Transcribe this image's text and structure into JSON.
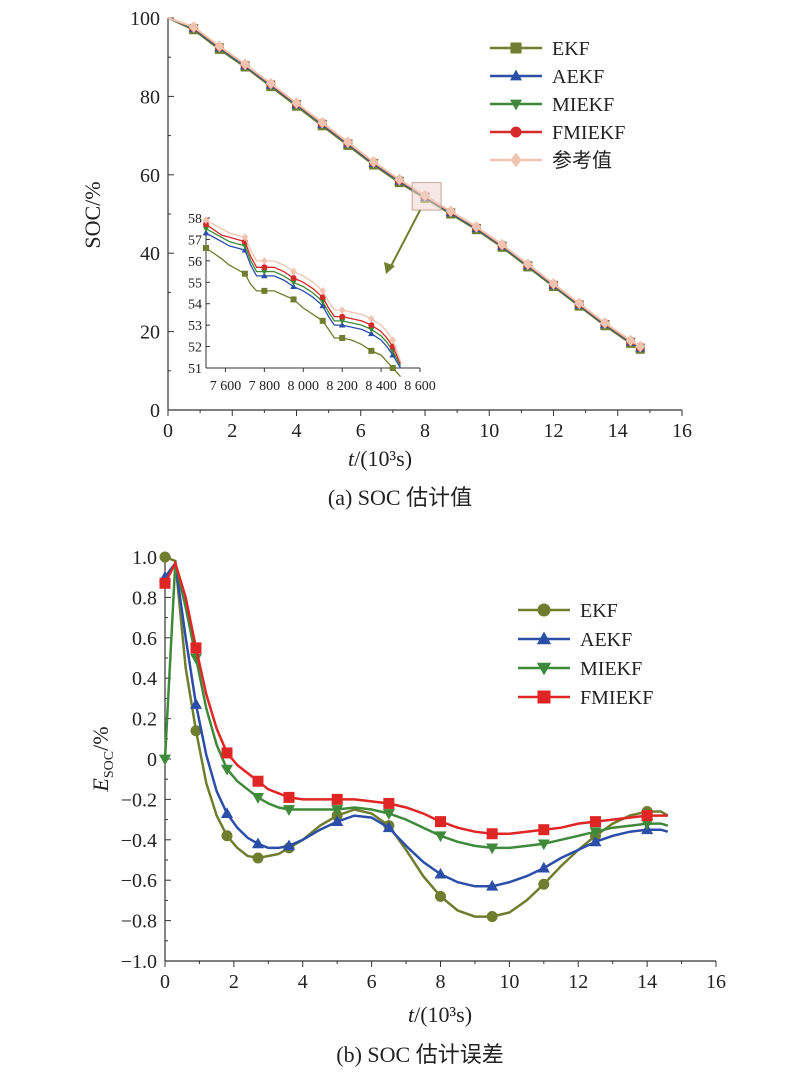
{
  "chart_data": [
    {
      "type": "line",
      "caption": "(a) SOC 估计值",
      "xlabel_italic": "t",
      "xlabel_rest": "/(10³s)",
      "ylabel": "SOC/%",
      "xlim": [
        0,
        16
      ],
      "ylim": [
        0,
        100
      ],
      "xticks": [
        0,
        2,
        4,
        6,
        8,
        10,
        12,
        14,
        16
      ],
      "yticks": [
        0,
        20,
        40,
        60,
        80,
        100
      ],
      "legend_position": "top-right",
      "series": [
        {
          "name": "EKF",
          "color": "#6e7d2e",
          "marker": "square",
          "x": [
            0,
            0.8,
            1.6,
            2.4,
            3.2,
            4.0,
            4.8,
            5.6,
            6.4,
            7.2,
            8.0,
            8.8,
            9.6,
            10.4,
            11.2,
            12.0,
            12.8,
            13.6,
            14.4,
            14.7
          ],
          "y": [
            100,
            97,
            92,
            87.5,
            82.5,
            77.5,
            72.5,
            67.5,
            62.5,
            58,
            54,
            50,
            46,
            41.5,
            36.5,
            31.5,
            26.5,
            21.5,
            17,
            15.5
          ]
        },
        {
          "name": "AEKF",
          "color": "#2b4fa8",
          "marker": "triangle-up",
          "x": [
            0,
            0.8,
            1.6,
            2.4,
            3.2,
            4.0,
            4.8,
            5.6,
            6.4,
            7.2,
            8.0,
            8.8,
            9.6,
            10.4,
            11.2,
            12.0,
            12.8,
            13.6,
            14.4,
            14.7
          ],
          "y": [
            100,
            97.3,
            92.4,
            87.8,
            82.9,
            77.9,
            72.9,
            67.9,
            62.9,
            58.4,
            54.3,
            50.3,
            46.3,
            41.8,
            36.8,
            31.8,
            26.8,
            21.8,
            17.3,
            15.8
          ]
        },
        {
          "name": "MIEKF",
          "color": "#3e8a3a",
          "marker": "triangle-down",
          "x": [
            0,
            0.8,
            1.6,
            2.4,
            3.2,
            4.0,
            4.8,
            5.6,
            6.4,
            7.2,
            8.0,
            8.8,
            9.6,
            10.4,
            11.2,
            12.0,
            12.8,
            13.6,
            14.4,
            14.7
          ],
          "y": [
            100,
            97.5,
            92.6,
            88,
            83.1,
            78.1,
            73.1,
            68.1,
            63.1,
            58.6,
            54.5,
            50.5,
            46.5,
            42,
            37,
            32,
            27,
            22,
            17.5,
            16
          ]
        },
        {
          "name": "FMIEKF",
          "color": "#d42a2a",
          "marker": "circle",
          "x": [
            0,
            0.8,
            1.6,
            2.4,
            3.2,
            4.0,
            4.8,
            5.6,
            6.4,
            7.2,
            8.0,
            8.8,
            9.6,
            10.4,
            11.2,
            12.0,
            12.8,
            13.6,
            14.4,
            14.7
          ],
          "y": [
            100,
            97.6,
            92.7,
            88.1,
            83.2,
            78.2,
            73.2,
            68.2,
            63.2,
            58.7,
            54.6,
            50.6,
            46.6,
            42.1,
            37.1,
            32.1,
            27.1,
            22.1,
            17.6,
            16.1
          ]
        },
        {
          "name": "参考值",
          "color": "#f0c4b0",
          "marker": "diamond",
          "x": [
            0,
            0.8,
            1.6,
            2.4,
            3.2,
            4.0,
            4.8,
            5.6,
            6.4,
            7.2,
            8.0,
            8.8,
            9.6,
            10.4,
            11.2,
            12.0,
            12.8,
            13.6,
            14.4,
            14.7
          ],
          "y": [
            100,
            97.7,
            92.8,
            88.2,
            83.3,
            78.3,
            73.3,
            68.3,
            63.3,
            58.8,
            54.7,
            50.7,
            46.7,
            42.2,
            37.2,
            32.2,
            27.2,
            22.2,
            17.7,
            16.2
          ]
        }
      ],
      "zoom_region": {
        "x": [
          7.6,
          8.5
        ],
        "y": [
          51,
          58
        ]
      },
      "inset": {
        "xlim": [
          7500,
          8600
        ],
        "ylim": [
          51,
          58
        ],
        "xtick_labels": [
          "7 600",
          "7 800",
          "8 000",
          "8 200",
          "8 400",
          "8 600"
        ],
        "xtick_values": [
          7600,
          7800,
          8000,
          8200,
          8400,
          8600
        ],
        "yticks": [
          51,
          52,
          53,
          54,
          55,
          56,
          57,
          58
        ],
        "series": [
          {
            "name": "EKF",
            "color": "#6e7d2e",
            "marker": "square",
            "x": [
              7500,
              7580,
              7620,
              7700,
              7730,
              7760,
              7800,
              7850,
              7900,
              7950,
              8000,
              8050,
              8100,
              8130,
              8160,
              8200,
              8250,
              8300,
              8350,
              8400,
              8430,
              8460,
              8500
            ],
            "y": [
              56.6,
              56.1,
              55.8,
              55.4,
              54.9,
              54.6,
              54.6,
              54.6,
              54.4,
              54.2,
              53.8,
              53.5,
              53.2,
              52.8,
              52.4,
              52.4,
              52.3,
              52.1,
              51.8,
              51.6,
              51.3,
              51.0,
              50.6
            ]
          },
          {
            "name": "AEKF",
            "color": "#2b4fa8",
            "marker": "triangle-up",
            "x": [
              7500,
              7580,
              7620,
              7700,
              7730,
              7760,
              7800,
              7850,
              7900,
              7950,
              8000,
              8050,
              8100,
              8130,
              8160,
              8200,
              8250,
              8300,
              8350,
              8400,
              8430,
              8460,
              8500
            ],
            "y": [
              57.3,
              56.9,
              56.7,
              56.5,
              55.8,
              55.3,
              55.3,
              55.3,
              55.1,
              54.8,
              54.6,
              54.3,
              53.9,
              53.4,
              53.0,
              53.0,
              52.9,
              52.8,
              52.6,
              52.3,
              52.0,
              51.6,
              51.0
            ]
          },
          {
            "name": "MIEKF",
            "color": "#3e8a3a",
            "marker": "triangle-down",
            "x": [
              7500,
              7580,
              7620,
              7700,
              7730,
              7760,
              7800,
              7850,
              7900,
              7950,
              8000,
              8050,
              8100,
              8130,
              8160,
              8200,
              8250,
              8300,
              8350,
              8400,
              8430,
              8460,
              8500
            ],
            "y": [
              57.5,
              57.1,
              56.9,
              56.7,
              56.0,
              55.5,
              55.5,
              55.5,
              55.3,
              55.0,
              54.8,
              54.5,
              54.1,
              53.6,
              53.2,
              53.2,
              53.1,
              53.0,
              52.8,
              52.5,
              52.2,
              51.8,
              51.1
            ]
          },
          {
            "name": "FMIEKF",
            "color": "#d42a2a",
            "marker": "circle",
            "x": [
              7500,
              7580,
              7620,
              7700,
              7730,
              7760,
              7800,
              7850,
              7900,
              7950,
              8000,
              8050,
              8100,
              8130,
              8160,
              8200,
              8250,
              8300,
              8350,
              8400,
              8430,
              8460,
              8500
            ],
            "y": [
              57.7,
              57.2,
              57.1,
              56.9,
              56.2,
              55.7,
              55.7,
              55.7,
              55.5,
              55.2,
              55.0,
              54.7,
              54.3,
              53.8,
              53.4,
              53.4,
              53.3,
              53.2,
              53.0,
              52.7,
              52.4,
              52.0,
              51.2
            ]
          },
          {
            "name": "参考值",
            "color": "#f0c4b0",
            "marker": "diamond",
            "x": [
              7500,
              7580,
              7620,
              7700,
              7730,
              7760,
              7800,
              7850,
              7900,
              7950,
              8000,
              8050,
              8100,
              8130,
              8160,
              8200,
              8250,
              8300,
              8350,
              8400,
              8430,
              8460,
              8500
            ],
            "y": [
              57.9,
              57.5,
              57.3,
              57.1,
              56.5,
              56.0,
              56.0,
              56.0,
              55.8,
              55.5,
              55.3,
              55.0,
              54.6,
              54.1,
              53.7,
              53.7,
              53.6,
              53.5,
              53.3,
              53.0,
              52.7,
              52.3,
              51.3
            ]
          }
        ]
      }
    },
    {
      "type": "line",
      "caption": "(b) SOC 估计误差",
      "xlabel_italic": "t",
      "xlabel_rest": "/(10³s)",
      "ylabel_main": "E",
      "ylabel_sub": "SOC",
      "ylabel_rest": "/%",
      "xlim": [
        0,
        16
      ],
      "ylim": [
        -1.0,
        1.0
      ],
      "xticks": [
        0,
        2,
        4,
        6,
        8,
        10,
        12,
        14,
        16
      ],
      "ytick_labels": [
        "−1.0",
        "−0.8",
        "−0.6",
        "−0.4",
        "−0.2",
        "0",
        "0.2",
        "0.4",
        "0.6",
        "0.8",
        "1.0"
      ],
      "ytick_values": [
        -1.0,
        -0.8,
        -0.6,
        -0.4,
        -0.2,
        0,
        0.2,
        0.4,
        0.6,
        0.8,
        1.0
      ],
      "legend_position": "right",
      "series": [
        {
          "name": "EKF",
          "color": "#6e7d2e",
          "marker": "circle",
          "x": [
            0,
            0.3,
            0.6,
            0.9,
            1.2,
            1.5,
            1.8,
            2.1,
            2.4,
            2.7,
            3.0,
            3.3,
            3.6,
            4.0,
            4.5,
            5.0,
            5.5,
            6.0,
            6.5,
            7.0,
            7.5,
            8.0,
            8.5,
            9.0,
            9.5,
            10.0,
            10.5,
            11.0,
            11.5,
            12.0,
            12.5,
            13.0,
            13.5,
            14.0,
            14.4,
            14.6
          ],
          "y": [
            1.0,
            0.98,
            0.45,
            0.14,
            -0.12,
            -0.28,
            -0.38,
            -0.44,
            -0.48,
            -0.49,
            -0.48,
            -0.47,
            -0.44,
            -0.4,
            -0.33,
            -0.28,
            -0.25,
            -0.27,
            -0.33,
            -0.45,
            -0.58,
            -0.68,
            -0.75,
            -0.78,
            -0.78,
            -0.76,
            -0.7,
            -0.62,
            -0.53,
            -0.45,
            -0.38,
            -0.32,
            -0.28,
            -0.26,
            -0.26,
            -0.28
          ]
        },
        {
          "name": "AEKF",
          "color": "#2b4fa8",
          "marker": "triangle-up",
          "x": [
            0,
            0.3,
            0.6,
            0.9,
            1.2,
            1.5,
            1.8,
            2.1,
            2.4,
            2.7,
            3.0,
            3.3,
            3.6,
            4.0,
            4.5,
            5.0,
            5.5,
            6.0,
            6.5,
            7.0,
            7.5,
            8.0,
            8.5,
            9.0,
            9.5,
            10.0,
            10.5,
            11.0,
            11.5,
            12.0,
            12.5,
            13.0,
            13.5,
            14.0,
            14.4,
            14.6
          ],
          "y": [
            0.9,
            0.97,
            0.6,
            0.27,
            0.02,
            -0.16,
            -0.27,
            -0.34,
            -0.39,
            -0.42,
            -0.44,
            -0.44,
            -0.43,
            -0.4,
            -0.35,
            -0.31,
            -0.28,
            -0.29,
            -0.34,
            -0.43,
            -0.51,
            -0.57,
            -0.61,
            -0.63,
            -0.63,
            -0.61,
            -0.58,
            -0.54,
            -0.49,
            -0.45,
            -0.41,
            -0.38,
            -0.36,
            -0.35,
            -0.35,
            -0.36
          ]
        },
        {
          "name": "MIEKF",
          "color": "#3e8a3a",
          "marker": "triangle-down",
          "x": [
            0,
            0.3,
            0.6,
            0.9,
            1.2,
            1.5,
            1.8,
            2.1,
            2.4,
            2.7,
            3.0,
            3.3,
            3.6,
            4.0,
            4.5,
            5.0,
            5.5,
            6.0,
            6.5,
            7.0,
            7.5,
            8.0,
            8.5,
            9.0,
            9.5,
            10.0,
            10.5,
            11.0,
            11.5,
            12.0,
            12.5,
            13.0,
            13.5,
            14.0,
            14.4,
            14.6
          ],
          "y": [
            0.0,
            0.97,
            0.75,
            0.5,
            0.25,
            0.07,
            -0.05,
            -0.11,
            -0.15,
            -0.19,
            -0.22,
            -0.24,
            -0.25,
            -0.25,
            -0.25,
            -0.25,
            -0.24,
            -0.25,
            -0.27,
            -0.3,
            -0.34,
            -0.38,
            -0.41,
            -0.43,
            -0.44,
            -0.44,
            -0.43,
            -0.42,
            -0.4,
            -0.38,
            -0.36,
            -0.34,
            -0.33,
            -0.32,
            -0.32,
            -0.33
          ]
        },
        {
          "name": "FMIEKF",
          "color": "#e02525",
          "marker": "square",
          "x": [
            0,
            0.3,
            0.6,
            0.9,
            1.2,
            1.5,
            1.8,
            2.1,
            2.4,
            2.7,
            3.0,
            3.3,
            3.6,
            4.0,
            4.5,
            5.0,
            5.5,
            6.0,
            6.5,
            7.0,
            7.5,
            8.0,
            8.5,
            9.0,
            9.5,
            10.0,
            10.5,
            11.0,
            11.5,
            12.0,
            12.5,
            13.0,
            13.5,
            14.0,
            14.4,
            14.6
          ],
          "y": [
            0.87,
            0.97,
            0.8,
            0.55,
            0.32,
            0.15,
            0.03,
            -0.03,
            -0.07,
            -0.11,
            -0.15,
            -0.17,
            -0.19,
            -0.2,
            -0.2,
            -0.2,
            -0.2,
            -0.21,
            -0.22,
            -0.24,
            -0.27,
            -0.31,
            -0.34,
            -0.36,
            -0.37,
            -0.37,
            -0.36,
            -0.35,
            -0.34,
            -0.32,
            -0.31,
            -0.3,
            -0.29,
            -0.28,
            -0.28,
            -0.28
          ]
        }
      ]
    }
  ]
}
